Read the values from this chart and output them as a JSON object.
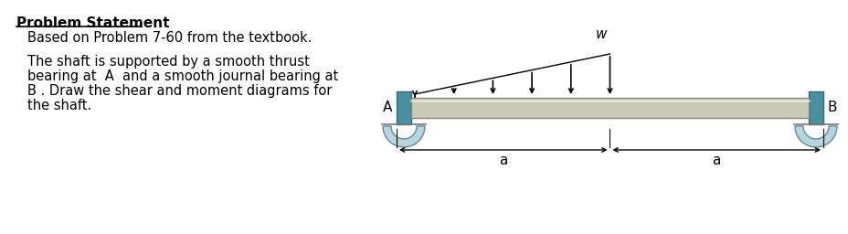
{
  "bg_color": "#ffffff",
  "text_color": "#000000",
  "title": "Problem Statement",
  "subtitle": "Based on Problem 7-60 from the textbook.",
  "body_line1": "The shaft is supported by a smooth thrust",
  "body_line2": "bearing at  A  and a smooth journal bearing at",
  "body_line3": "B . Draw the shear and moment diagrams for",
  "body_line4": "the shaft.",
  "label_A": "A",
  "label_B": "B",
  "label_w": "w",
  "label_a1": "a",
  "label_a2": "a",
  "shaft_color": "#c8c8b4",
  "shaft_edge_color": "#888878",
  "bearing_color": "#4a8fa0",
  "bearing_edge_color": "#336677",
  "support_color": "#b8d4dc",
  "support_edge_color": "#668899"
}
